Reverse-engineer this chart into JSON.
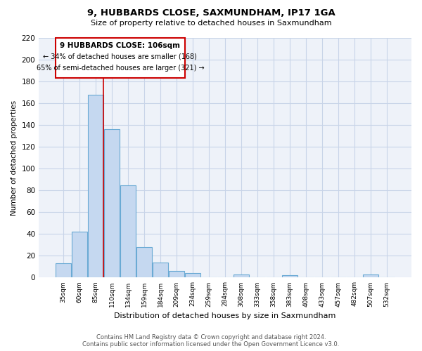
{
  "title": "9, HUBBARDS CLOSE, SAXMUNDHAM, IP17 1GA",
  "subtitle": "Size of property relative to detached houses in Saxmundham",
  "xlabel": "Distribution of detached houses by size in Saxmundham",
  "ylabel": "Number of detached properties",
  "bar_labels": [
    "35sqm",
    "60sqm",
    "85sqm",
    "110sqm",
    "134sqm",
    "159sqm",
    "184sqm",
    "209sqm",
    "234sqm",
    "259sqm",
    "284sqm",
    "308sqm",
    "333sqm",
    "358sqm",
    "383sqm",
    "408sqm",
    "433sqm",
    "457sqm",
    "482sqm",
    "507sqm",
    "532sqm"
  ],
  "bar_values": [
    13,
    42,
    168,
    136,
    85,
    28,
    14,
    6,
    4,
    0,
    0,
    3,
    0,
    0,
    2,
    0,
    0,
    0,
    0,
    3,
    0
  ],
  "bar_color": "#c5d8f0",
  "bar_edge_color": "#6aaad4",
  "vline_color": "#cc0000",
  "ylim": [
    0,
    220
  ],
  "yticks": [
    0,
    20,
    40,
    60,
    80,
    100,
    120,
    140,
    160,
    180,
    200,
    220
  ],
  "annotation_box_text_line1": "9 HUBBARDS CLOSE: 106sqm",
  "annotation_box_text_line2": "← 34% of detached houses are smaller (168)",
  "annotation_box_text_line3": "65% of semi-detached houses are larger (321) →",
  "footer_line1": "Contains HM Land Registry data © Crown copyright and database right 2024.",
  "footer_line2": "Contains public sector information licensed under the Open Government Licence v3.0.",
  "background_color": "#ffffff",
  "grid_color": "#c8d4e8"
}
